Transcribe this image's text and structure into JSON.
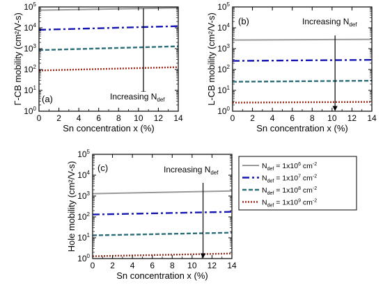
{
  "chart_data": [
    {
      "type": "line",
      "panel_label": "(a)",
      "xlabel": "Sn concentration x (%)",
      "ylabel": "Γ-CB mobility (cm²/V-s)",
      "xlim": [
        0,
        14
      ],
      "ylim_log10": [
        0,
        5
      ],
      "y_scale": "log",
      "x_ticks": [
        "0",
        "2",
        "4",
        "6",
        "8",
        "10",
        "12",
        "14"
      ],
      "y_ticks": [
        {
          "base": "10",
          "exp": "0"
        },
        {
          "base": "10",
          "exp": "1"
        },
        {
          "base": "10",
          "exp": "2"
        },
        {
          "base": "10",
          "exp": "3"
        },
        {
          "base": "10",
          "exp": "4"
        },
        {
          "base": "10",
          "exp": "5"
        }
      ],
      "annotation": {
        "text": "Increasing N",
        "sub": "def",
        "arrow_x": 10.5,
        "arrow_from": 100000,
        "arrow_to": 5
      },
      "series": [
        {
          "x": [
            0,
            14
          ],
          "y": [
            70000,
            90000
          ]
        },
        {
          "x": [
            0,
            14
          ],
          "y": [
            8000,
            12000
          ]
        },
        {
          "x": [
            0,
            14
          ],
          "y": [
            850,
            1300
          ]
        },
        {
          "x": [
            0,
            14
          ],
          "y": [
            90,
            130
          ]
        }
      ]
    },
    {
      "type": "line",
      "panel_label": "(b)",
      "xlabel": "Sn concentration x (%)",
      "ylabel": "L-CB mobility (cm²/V-s)",
      "xlim": [
        0,
        14
      ],
      "ylim_log10": [
        0,
        5
      ],
      "y_scale": "log",
      "x_ticks": [
        "0",
        "2",
        "4",
        "6",
        "8",
        "10",
        "12",
        "14"
      ],
      "y_ticks": [
        {
          "base": "10",
          "exp": "0"
        },
        {
          "base": "10",
          "exp": "1"
        },
        {
          "base": "10",
          "exp": "2"
        },
        {
          "base": "10",
          "exp": "3"
        },
        {
          "base": "10",
          "exp": "4"
        },
        {
          "base": "10",
          "exp": "5"
        }
      ],
      "annotation": {
        "text": "Increasing N",
        "sub": "def",
        "arrow_x": 10.3,
        "arrow_from": 5000,
        "arrow_to": 1
      },
      "series": [
        {
          "x": [
            0,
            14
          ],
          "y": [
            2600,
            2800
          ]
        },
        {
          "x": [
            0,
            14
          ],
          "y": [
            260,
            290
          ]
        },
        {
          "x": [
            0,
            14
          ],
          "y": [
            26,
            29
          ]
        },
        {
          "x": [
            0,
            14
          ],
          "y": [
            2.6,
            2.8
          ]
        }
      ]
    },
    {
      "type": "line",
      "panel_label": "(c)",
      "xlabel": "Sn concentration x (%)",
      "ylabel": "Hole mobility (cm²/V-s)",
      "xlim": [
        0,
        14
      ],
      "ylim_log10": [
        0,
        5
      ],
      "y_scale": "log",
      "x_ticks": [
        "0",
        "2",
        "4",
        "6",
        "8",
        "10",
        "12",
        "14"
      ],
      "y_ticks": [
        {
          "base": "10",
          "exp": "0"
        },
        {
          "base": "10",
          "exp": "1"
        },
        {
          "base": "10",
          "exp": "2"
        },
        {
          "base": "10",
          "exp": "3"
        },
        {
          "base": "10",
          "exp": "4"
        },
        {
          "base": "10",
          "exp": "5"
        }
      ],
      "annotation": {
        "text": "Increasing N",
        "sub": "def",
        "arrow_x": 11.1,
        "arrow_from": 5000,
        "arrow_to": 1
      },
      "series": [
        {
          "x": [
            0,
            14
          ],
          "y": [
            1300,
            1750
          ]
        },
        {
          "x": [
            0,
            14
          ],
          "y": [
            130,
            175
          ]
        },
        {
          "x": [
            0,
            14
          ],
          "y": [
            13,
            17.5
          ]
        },
        {
          "x": [
            0,
            14
          ],
          "y": [
            1.3,
            1.75
          ]
        }
      ]
    }
  ],
  "legend": {
    "placement": "right of panel (c)",
    "entries": [
      {
        "main": "N",
        "sub": "def",
        "eq": " = 1x10",
        "exp": "6",
        "unit": " cm",
        "unit_exp": "-2",
        "color": "#999999",
        "dash": "solid"
      },
      {
        "main": "N",
        "sub": "def",
        "eq": " = 1x10",
        "exp": "7",
        "unit": " cm",
        "unit_exp": "-2",
        "color": "#1515b4",
        "dash": "dashdot"
      },
      {
        "main": "N",
        "sub": "def",
        "eq": " = 1x10",
        "exp": "8",
        "unit": " cm",
        "unit_exp": "-2",
        "color": "#2a6e7a",
        "dash": "dashed"
      },
      {
        "main": "N",
        "sub": "def",
        "eq": " = 1x10",
        "exp": "9",
        "unit": " cm",
        "unit_exp": "-2",
        "color": "#a02818",
        "dash": "dotted"
      }
    ]
  }
}
